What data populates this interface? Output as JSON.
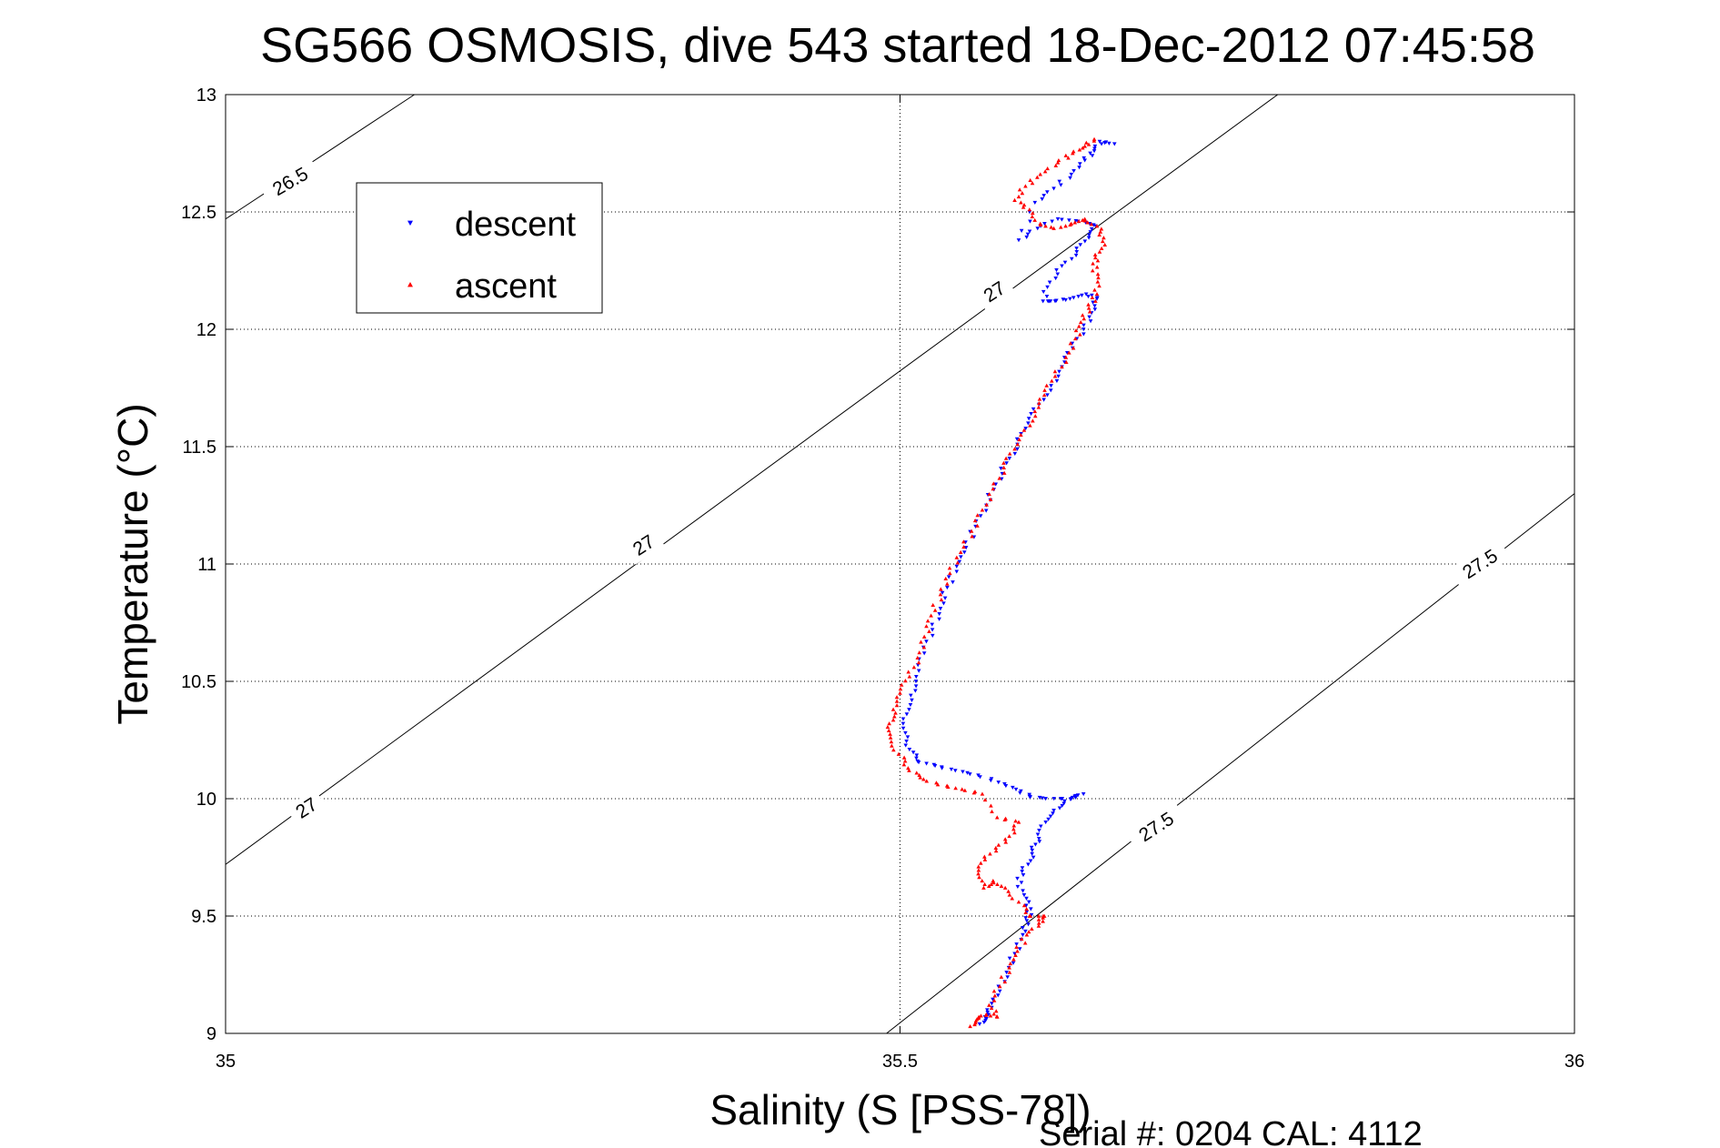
{
  "chart_data": {
    "type": "scatter",
    "title": "SG566 OSMOSIS, dive 543 started 18-Dec-2012 07:45:58",
    "xlabel": "Salinity (S [PSS-78])",
    "ylabel": "Temperature (°C)",
    "xlim": [
      35,
      36
    ],
    "ylim": [
      9,
      13
    ],
    "xticks": [
      "35",
      "35.5",
      "36"
    ],
    "yticks": [
      "9",
      "9.5",
      "10",
      "10.5",
      "11",
      "11.5",
      "12",
      "12.5",
      "13"
    ],
    "grid": true,
    "legend_position": "top-left",
    "footer": "Serial #: 0204  CAL: 4112",
    "series": [
      {
        "name": "descent",
        "color": "#0000ff",
        "marker": "triangle-down",
        "points": [
          [
            35.559,
            9.04
          ],
          [
            35.563,
            9.07
          ],
          [
            35.568,
            9.11
          ],
          [
            35.574,
            9.18
          ],
          [
            35.579,
            9.26
          ],
          [
            35.585,
            9.34
          ],
          [
            35.591,
            9.42
          ],
          [
            35.594,
            9.48
          ],
          [
            35.597,
            9.53
          ],
          [
            35.592,
            9.59
          ],
          [
            35.587,
            9.66
          ],
          [
            35.595,
            9.72
          ],
          [
            35.598,
            9.78
          ],
          [
            35.603,
            9.83
          ],
          [
            35.608,
            9.9
          ],
          [
            35.614,
            9.95
          ],
          [
            35.622,
            9.99
          ],
          [
            35.636,
            10.02
          ],
          [
            35.627,
            10.0
          ],
          [
            35.608,
            10.0
          ],
          [
            35.596,
            10.01
          ],
          [
            35.586,
            10.04
          ],
          [
            35.573,
            10.07
          ],
          [
            35.558,
            10.1
          ],
          [
            35.541,
            10.12
          ],
          [
            35.526,
            10.14
          ],
          [
            35.513,
            10.16
          ],
          [
            35.507,
            10.21
          ],
          [
            35.504,
            10.28
          ],
          [
            35.505,
            10.36
          ],
          [
            35.508,
            10.44
          ],
          [
            35.512,
            10.52
          ],
          [
            35.518,
            10.62
          ],
          [
            35.524,
            10.72
          ],
          [
            35.53,
            10.81
          ],
          [
            35.535,
            10.9
          ],
          [
            35.542,
            10.99
          ],
          [
            35.549,
            11.07
          ],
          [
            35.556,
            11.16
          ],
          [
            35.564,
            11.25
          ],
          [
            35.571,
            11.34
          ],
          [
            35.579,
            11.43
          ],
          [
            35.587,
            11.51
          ],
          [
            35.595,
            11.6
          ],
          [
            35.603,
            11.68
          ],
          [
            35.612,
            11.76
          ],
          [
            35.62,
            11.84
          ],
          [
            35.628,
            11.92
          ],
          [
            35.636,
            12.0
          ],
          [
            35.642,
            12.07
          ],
          [
            35.646,
            12.13
          ],
          [
            35.638,
            12.15
          ],
          [
            35.626,
            12.13
          ],
          [
            35.615,
            12.12
          ],
          [
            35.606,
            12.12
          ],
          [
            35.611,
            12.2
          ],
          [
            35.62,
            12.27
          ],
          [
            35.631,
            12.33
          ],
          [
            35.64,
            12.39
          ],
          [
            35.645,
            12.44
          ],
          [
            35.632,
            12.46
          ],
          [
            35.617,
            12.47
          ],
          [
            35.602,
            12.43
          ],
          [
            35.588,
            12.38
          ],
          [
            35.6,
            12.54
          ],
          [
            35.614,
            12.6
          ],
          [
            35.627,
            12.66
          ],
          [
            35.637,
            12.72
          ],
          [
            35.644,
            12.76
          ],
          [
            35.648,
            12.8
          ],
          [
            35.659,
            12.79
          ]
        ]
      },
      {
        "name": "ascent",
        "color": "#ff0000",
        "marker": "triangle-up",
        "points": [
          [
            35.552,
            9.03
          ],
          [
            35.557,
            9.06
          ],
          [
            35.564,
            9.08
          ],
          [
            35.572,
            9.07
          ],
          [
            35.566,
            9.12
          ],
          [
            35.574,
            9.2
          ],
          [
            35.581,
            9.28
          ],
          [
            35.587,
            9.35
          ],
          [
            35.594,
            9.42
          ],
          [
            35.603,
            9.47
          ],
          [
            35.607,
            9.5
          ],
          [
            35.596,
            9.5
          ],
          [
            35.588,
            9.56
          ],
          [
            35.578,
            9.62
          ],
          [
            35.569,
            9.65
          ],
          [
            35.562,
            9.62
          ],
          [
            35.558,
            9.68
          ],
          [
            35.563,
            9.74
          ],
          [
            35.571,
            9.79
          ],
          [
            35.581,
            9.84
          ],
          [
            35.588,
            9.9
          ],
          [
            35.572,
            9.92
          ],
          [
            35.561,
            10.02
          ],
          [
            35.546,
            10.04
          ],
          [
            35.528,
            10.06
          ],
          [
            35.515,
            10.09
          ],
          [
            35.506,
            10.13
          ],
          [
            35.499,
            10.19
          ],
          [
            35.493,
            10.26
          ],
          [
            35.492,
            10.32
          ],
          [
            35.495,
            10.38
          ],
          [
            35.5,
            10.45
          ],
          [
            35.507,
            10.52
          ],
          [
            35.513,
            10.6
          ],
          [
            35.518,
            10.69
          ],
          [
            35.523,
            10.78
          ],
          [
            35.53,
            10.87
          ],
          [
            35.537,
            10.96
          ],
          [
            35.545,
            11.05
          ],
          [
            35.553,
            11.14
          ],
          [
            35.561,
            11.23
          ],
          [
            35.569,
            11.32
          ],
          [
            35.577,
            11.41
          ],
          [
            35.585,
            11.49
          ],
          [
            35.592,
            11.57
          ],
          [
            35.6,
            11.65
          ],
          [
            35.607,
            11.72
          ],
          [
            35.615,
            11.8
          ],
          [
            35.623,
            11.88
          ],
          [
            35.63,
            11.96
          ],
          [
            35.634,
            12.03
          ],
          [
            35.64,
            12.09
          ],
          [
            35.646,
            12.15
          ],
          [
            35.647,
            12.22
          ],
          [
            35.643,
            12.28
          ],
          [
            35.648,
            12.33
          ],
          [
            35.651,
            12.39
          ],
          [
            35.646,
            12.44
          ],
          [
            35.637,
            12.47
          ],
          [
            35.627,
            12.45
          ],
          [
            35.614,
            12.43
          ],
          [
            35.604,
            12.45
          ],
          [
            35.596,
            12.51
          ],
          [
            35.585,
            12.55
          ],
          [
            35.593,
            12.61
          ],
          [
            35.604,
            12.66
          ],
          [
            35.617,
            12.71
          ],
          [
            35.628,
            12.75
          ],
          [
            35.637,
            12.78
          ],
          [
            35.644,
            12.81
          ]
        ]
      }
    ],
    "contours": [
      {
        "level": "26.5",
        "points": [
          [
            35.0,
            12.47
          ],
          [
            35.14,
            13.0
          ]
        ],
        "labels": [
          {
            "text": "26.5",
            "at": [
              35.048,
              12.63
            ],
            "angle": -30
          }
        ]
      },
      {
        "level": "27",
        "points": [
          [
            35.0,
            9.72
          ],
          [
            35.78,
            13.0
          ]
        ],
        "labels": [
          {
            "text": "27",
            "at": [
              35.06,
              9.96
            ],
            "angle": -33
          },
          {
            "text": "27",
            "at": [
              35.31,
              11.08
            ],
            "angle": -33
          },
          {
            "text": "27",
            "at": [
              35.57,
              12.16
            ],
            "angle": -33
          }
        ]
      },
      {
        "level": "27.5",
        "points": [
          [
            35.49,
            9.0
          ],
          [
            36.0,
            11.3
          ]
        ],
        "labels": [
          {
            "text": "27.5",
            "at": [
              35.69,
              9.88
            ],
            "angle": -33
          },
          {
            "text": "27.5",
            "at": [
              35.93,
              11.0
            ],
            "angle": -33
          }
        ]
      }
    ]
  }
}
